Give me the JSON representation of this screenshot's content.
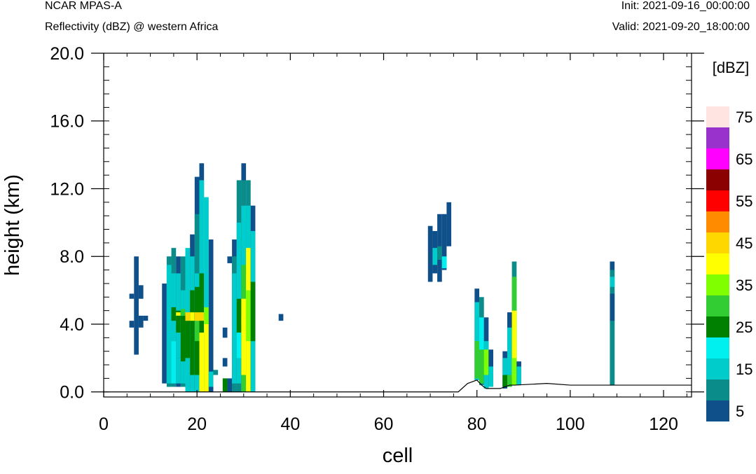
{
  "header": {
    "left_title": "NCAR MPAS-A",
    "left_subtitle": "Reflectivity (dBZ) @ western Africa",
    "right_init": "Init: 2021-09-16_00:00:00",
    "right_valid": "Valid: 2021-09-20_18:00:00"
  },
  "chart_data": {
    "type": "heatmap",
    "title": "Reflectivity (dBZ) @ western Africa",
    "xlabel": "cell",
    "ylabel": "height (km)",
    "xlim": [
      0,
      126
    ],
    "ylim": [
      -0.3,
      20.0
    ],
    "x_ticks": [
      0,
      20,
      40,
      60,
      80,
      100,
      120
    ],
    "x_tick_labels": [
      "0",
      "20",
      "40",
      "60",
      "80",
      "100",
      "120"
    ],
    "y_ticks": [
      0,
      4,
      8,
      12,
      16,
      20
    ],
    "y_tick_labels": [
      "0.0",
      "4.0",
      "8.0",
      "12.0",
      "16.0",
      "20.0"
    ],
    "grid": false,
    "colorbar": {
      "unit": "[dBZ]",
      "levels": [
        5,
        10,
        15,
        20,
        25,
        30,
        35,
        40,
        45,
        50,
        55,
        60,
        65,
        70,
        75
      ],
      "colors": [
        "#0f4f8a",
        "#0a8c8a",
        "#00cccc",
        "#00f0f0",
        "#008000",
        "#32cd32",
        "#80ff00",
        "#ffff00",
        "#ffd700",
        "#ff8c00",
        "#ff0000",
        "#8b0000",
        "#ff00ff",
        "#9932cc",
        "#ffe4e1"
      ],
      "labels": [
        "5",
        "15",
        "25",
        "35",
        "45",
        "55",
        "65",
        "75"
      ]
    },
    "terrain": [
      [
        0,
        0
      ],
      [
        76,
        0
      ],
      [
        78,
        0.5
      ],
      [
        80,
        0.7
      ],
      [
        81,
        0.4
      ],
      [
        82,
        0.2
      ],
      [
        85,
        0.2
      ],
      [
        87,
        0.4
      ],
      [
        88,
        0.4
      ],
      [
        95,
        0.5
      ],
      [
        100,
        0.4
      ],
      [
        110,
        0.4
      ],
      [
        126,
        0.4
      ]
    ],
    "columns": [
      {
        "x": 6,
        "bins": [
          [
            5.5,
            5.8,
            5
          ],
          [
            3.8,
            4.2,
            5
          ]
        ]
      },
      {
        "x": 7,
        "bins": [
          [
            2.2,
            8.0,
            5
          ]
        ]
      },
      {
        "x": 8,
        "bins": [
          [
            5.5,
            6.3,
            5
          ],
          [
            3.8,
            4.5,
            5
          ]
        ]
      },
      {
        "x": 9,
        "bins": [
          [
            4.2,
            4.5,
            5
          ]
        ]
      },
      {
        "x": 13,
        "bins": [
          [
            0.5,
            6.4,
            5
          ]
        ]
      },
      {
        "x": 14,
        "bins": [
          [
            0.3,
            8.0,
            10
          ],
          [
            0.5,
            7.5,
            15
          ]
        ]
      },
      {
        "x": 15,
        "bins": [
          [
            0.3,
            8.5,
            10
          ],
          [
            3.0,
            7.0,
            15
          ],
          [
            0.5,
            3.0,
            20
          ],
          [
            4.2,
            5.0,
            25
          ]
        ]
      },
      {
        "x": 16,
        "bins": [
          [
            0.3,
            8.0,
            5
          ],
          [
            2.0,
            7.0,
            15
          ],
          [
            0.5,
            2.0,
            15
          ],
          [
            3.5,
            4.8,
            25
          ],
          [
            4.5,
            4.7,
            40
          ]
        ]
      },
      {
        "x": 17,
        "bins": [
          [
            0.3,
            8.0,
            10
          ],
          [
            0.5,
            6.0,
            15
          ],
          [
            1.8,
            4.5,
            25
          ],
          [
            4.5,
            4.9,
            30
          ]
        ]
      },
      {
        "x": 18,
        "bins": [
          [
            0.0,
            8.5,
            15
          ],
          [
            2.0,
            4.4,
            25
          ],
          [
            4.2,
            4.7,
            45
          ]
        ]
      },
      {
        "x": 19,
        "bins": [
          [
            0.0,
            9.3,
            5
          ],
          [
            0.0,
            8.0,
            15
          ],
          [
            1.0,
            6.0,
            25
          ],
          [
            4.2,
            4.7,
            40
          ]
        ]
      },
      {
        "x": 20,
        "bins": [
          [
            0.0,
            12.7,
            5
          ],
          [
            0.0,
            10.5,
            10
          ],
          [
            0.0,
            7.0,
            15
          ],
          [
            1.0,
            6.2,
            25
          ],
          [
            3.0,
            4.5,
            30
          ],
          [
            4.2,
            4.7,
            45
          ]
        ]
      },
      {
        "x": 21,
        "bins": [
          [
            0.0,
            13.5,
            5
          ],
          [
            0.0,
            12.5,
            15
          ],
          [
            2.5,
            7.0,
            25
          ],
          [
            0.0,
            3.5,
            40
          ],
          [
            4.2,
            4.7,
            45
          ]
        ]
      },
      {
        "x": 22,
        "bins": [
          [
            0.0,
            11.5,
            15
          ],
          [
            0.0,
            4.5,
            40
          ],
          [
            4.0,
            5.0,
            35
          ]
        ]
      },
      {
        "x": 23,
        "bins": [
          [
            0.0,
            9.0,
            5
          ],
          [
            0.3,
            1.2,
            15
          ]
        ]
      },
      {
        "x": 24,
        "bins": [
          [
            1.0,
            1.3,
            10
          ]
        ]
      },
      {
        "x": 26,
        "bins": [
          [
            0.0,
            0.8,
            25
          ],
          [
            1.5,
            2.0,
            5
          ],
          [
            3.2,
            3.8,
            5
          ]
        ]
      },
      {
        "x": 27,
        "bins": [
          [
            7.6,
            8.0,
            5
          ],
          [
            0.0,
            0.8,
            5
          ]
        ]
      },
      {
        "x": 28,
        "bins": [
          [
            0.0,
            9.0,
            5
          ],
          [
            0.0,
            8.0,
            10
          ],
          [
            0.5,
            7.0,
            15
          ]
        ]
      },
      {
        "x": 29,
        "bins": [
          [
            0.0,
            12.5,
            10
          ],
          [
            0.5,
            10.0,
            15
          ],
          [
            3.5,
            5.5,
            25
          ],
          [
            2.0,
            3.5,
            20
          ]
        ]
      },
      {
        "x": 30,
        "bins": [
          [
            0.0,
            13.5,
            5
          ],
          [
            0.0,
            12.5,
            10
          ],
          [
            0.0,
            11.0,
            15
          ],
          [
            0.0,
            7.5,
            30
          ],
          [
            4.0,
            4.5,
            45
          ],
          [
            1.0,
            5.5,
            40
          ]
        ]
      },
      {
        "x": 31,
        "bins": [
          [
            0.0,
            12.5,
            10
          ],
          [
            0.0,
            11.0,
            15
          ],
          [
            0.0,
            8.5,
            40
          ],
          [
            3.0,
            6.0,
            35
          ]
        ]
      },
      {
        "x": 32,
        "bins": [
          [
            0.0,
            11.0,
            5
          ],
          [
            0.0,
            9.5,
            15
          ],
          [
            3.0,
            6.5,
            25
          ]
        ]
      },
      {
        "x": 38,
        "bins": [
          [
            4.2,
            4.6,
            5
          ]
        ]
      },
      {
        "x": 70,
        "bins": [
          [
            6.5,
            9.8,
            5
          ]
        ]
      },
      {
        "x": 71,
        "bins": [
          [
            7.0,
            9.5,
            5
          ],
          [
            7.5,
            8.5,
            15
          ]
        ]
      },
      {
        "x": 72,
        "bins": [
          [
            6.5,
            10.5,
            5
          ],
          [
            7.8,
            8.6,
            10
          ]
        ]
      },
      {
        "x": 73,
        "bins": [
          [
            7.2,
            10.5,
            5
          ],
          [
            7.3,
            8.0,
            20
          ]
        ]
      },
      {
        "x": 74,
        "bins": [
          [
            8.6,
            11.2,
            5
          ]
        ]
      },
      {
        "x": 80,
        "bins": [
          [
            0.7,
            6.1,
            5
          ],
          [
            0.7,
            5.3,
            15
          ],
          [
            0.8,
            3.0,
            30
          ]
        ]
      },
      {
        "x": 81,
        "bins": [
          [
            0.4,
            5.6,
            10
          ],
          [
            0.5,
            4.4,
            20
          ],
          [
            0.5,
            2.5,
            30
          ]
        ]
      },
      {
        "x": 82,
        "bins": [
          [
            0.2,
            4.4,
            5
          ],
          [
            0.2,
            3.0,
            15
          ],
          [
            1.0,
            2.5,
            35
          ]
        ]
      },
      {
        "x": 83,
        "bins": [
          [
            0.3,
            2.5,
            5
          ],
          [
            0.3,
            1.5,
            15
          ]
        ]
      },
      {
        "x": 86,
        "bins": [
          [
            0.2,
            2.4,
            5
          ],
          [
            0.3,
            2.0,
            15
          ],
          [
            0.3,
            1.0,
            25
          ]
        ]
      },
      {
        "x": 87,
        "bins": [
          [
            0.3,
            4.7,
            5
          ],
          [
            1.0,
            3.8,
            15
          ],
          [
            0.3,
            1.0,
            30
          ]
        ]
      },
      {
        "x": 88,
        "bins": [
          [
            0.4,
            7.7,
            10
          ],
          [
            0.4,
            6.8,
            30
          ],
          [
            0.8,
            4.8,
            40
          ],
          [
            0.4,
            2.0,
            35
          ]
        ]
      },
      {
        "x": 89,
        "bins": [
          [
            0.4,
            1.8,
            5
          ],
          [
            0.4,
            1.5,
            15
          ]
        ]
      },
      {
        "x": 109,
        "bins": [
          [
            0.4,
            7.7,
            5
          ],
          [
            0.4,
            7.2,
            10
          ],
          [
            6.2,
            6.8,
            15
          ],
          [
            4.2,
            5.8,
            5
          ]
        ]
      }
    ]
  }
}
